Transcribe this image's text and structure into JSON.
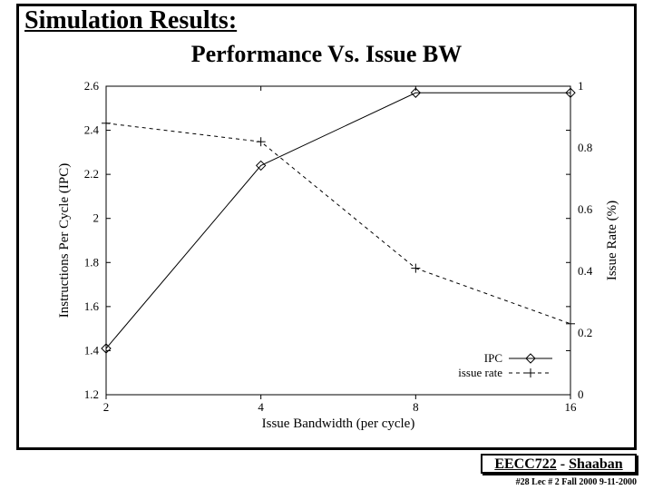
{
  "title": "Simulation Results:",
  "subtitle": "Performance Vs. Issue BW",
  "chart": {
    "type": "line-dual-axis",
    "background_color": "#ffffff",
    "axis_color": "#000000",
    "tick_fontsize": 13,
    "label_fontsize": 15,
    "legend_fontsize": 13,
    "x": {
      "label": "Issue Bandwidth (per cycle)",
      "ticks": [
        2,
        4,
        8,
        16
      ],
      "scale": "log2",
      "range": [
        2,
        16
      ]
    },
    "y_left": {
      "label": "Instructions Per Cycle (IPC)",
      "ticks": [
        1.2,
        1.4,
        1.6,
        1.8,
        2,
        2.2,
        2.4,
        2.6
      ],
      "range": [
        1.2,
        2.6
      ]
    },
    "y_right": {
      "label": "Issue Rate (%)",
      "ticks": [
        0,
        0.2,
        0.4,
        0.6,
        0.8,
        1
      ],
      "range": [
        0,
        1
      ]
    },
    "series": [
      {
        "name": "IPC",
        "axis": "left",
        "color": "#000000",
        "style": "solid",
        "linewidth": 1,
        "marker": "diamond",
        "x": [
          2,
          4,
          8,
          16
        ],
        "y": [
          1.41,
          2.24,
          2.57,
          2.57
        ]
      },
      {
        "name": "issue rate",
        "axis": "right",
        "color": "#000000",
        "style": "dashed",
        "linewidth": 1,
        "marker": "plus",
        "x": [
          2,
          4,
          8,
          16
        ],
        "y": [
          0.88,
          0.82,
          0.41,
          0.23
        ]
      }
    ],
    "legend": {
      "position": "bottom-right-inside"
    }
  },
  "footer": {
    "course": "EECC722",
    "author": "Shaaban",
    "line": "#28   Lec # 2   Fall 2000 9-11-2000"
  }
}
